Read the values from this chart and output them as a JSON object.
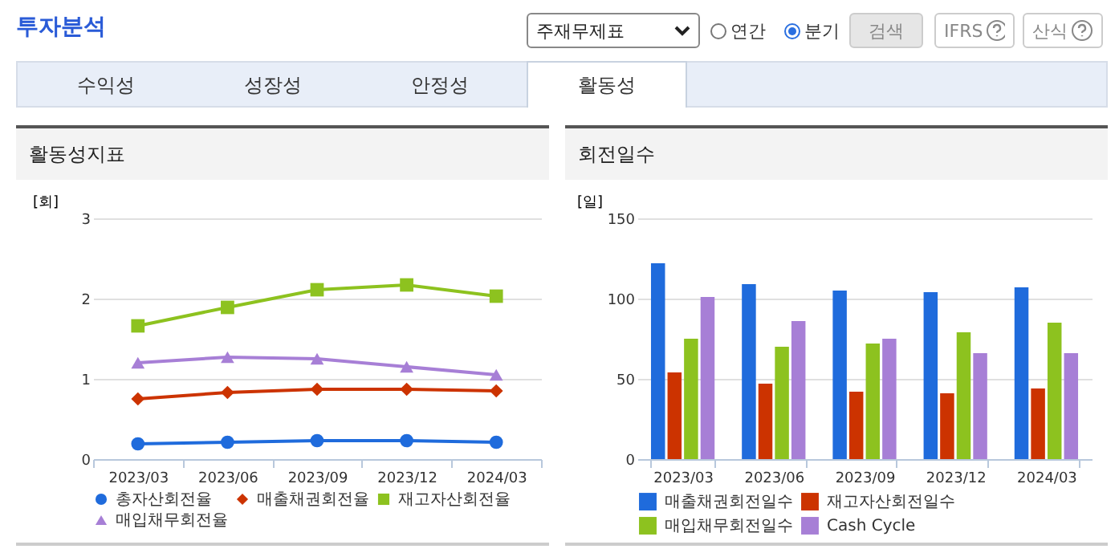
{
  "chart_data": [
    {
      "type": "other",
      "title": "투자분석",
      "annotations": [
        "주재무제표",
        "연간",
        "분기",
        "검색",
        "IFRS",
        "산식",
        "수익성",
        "성장성",
        "안정성",
        "활동성"
      ]
    },
    {
      "type": "line",
      "title": "활동성지표",
      "ylabel": "[회]",
      "categories": [
        "2023/03",
        "2023/06",
        "2023/09",
        "2023/12",
        "2024/03"
      ],
      "ylim": [
        0,
        3
      ],
      "yticks": [
        0,
        1,
        2,
        3
      ],
      "grid": "y",
      "legend": "bottom",
      "line_style": "solid",
      "series": [
        {
          "name": "총자산회전율",
          "color": "#1f6bdc",
          "marker": "circle",
          "values": [
            0.19,
            0.21,
            0.23,
            0.23,
            0.21
          ]
        },
        {
          "name": "매출채권회전율",
          "color": "#cc3300",
          "marker": "diamond",
          "values": [
            0.75,
            0.83,
            0.87,
            0.87,
            0.85
          ]
        },
        {
          "name": "재고자산회전율",
          "color": "#8dc21f",
          "marker": "square",
          "values": [
            1.66,
            1.89,
            2.11,
            2.17,
            2.03
          ]
        },
        {
          "name": "매입채무회전율",
          "color": "#a77fd6",
          "marker": "triangle",
          "values": [
            1.2,
            1.27,
            1.25,
            1.15,
            1.05
          ]
        }
      ]
    },
    {
      "type": "bar",
      "title": "회전일수",
      "ylabel": "[일]",
      "categories": [
        "2023/03",
        "2023/06",
        "2023/09",
        "2023/12",
        "2024/03"
      ],
      "ylim": [
        0,
        150
      ],
      "yticks": [
        0,
        50,
        100,
        150
      ],
      "grid": "y",
      "legend": "bottom",
      "series": [
        {
          "name": "매출채권회전일수",
          "color": "#1f6bdc",
          "values": [
            122,
            109,
            105,
            104,
            107
          ]
        },
        {
          "name": "재고자산회전일수",
          "color": "#cc3300",
          "values": [
            54,
            47,
            42,
            41,
            44
          ]
        },
        {
          "name": "매입채무회전일수",
          "color": "#8dc21f",
          "values": [
            75,
            70,
            72,
            79,
            85
          ]
        },
        {
          "name": "Cash Cycle",
          "color": "#a77fd6",
          "values": [
            101,
            86,
            75,
            66,
            66
          ]
        }
      ]
    }
  ]
}
